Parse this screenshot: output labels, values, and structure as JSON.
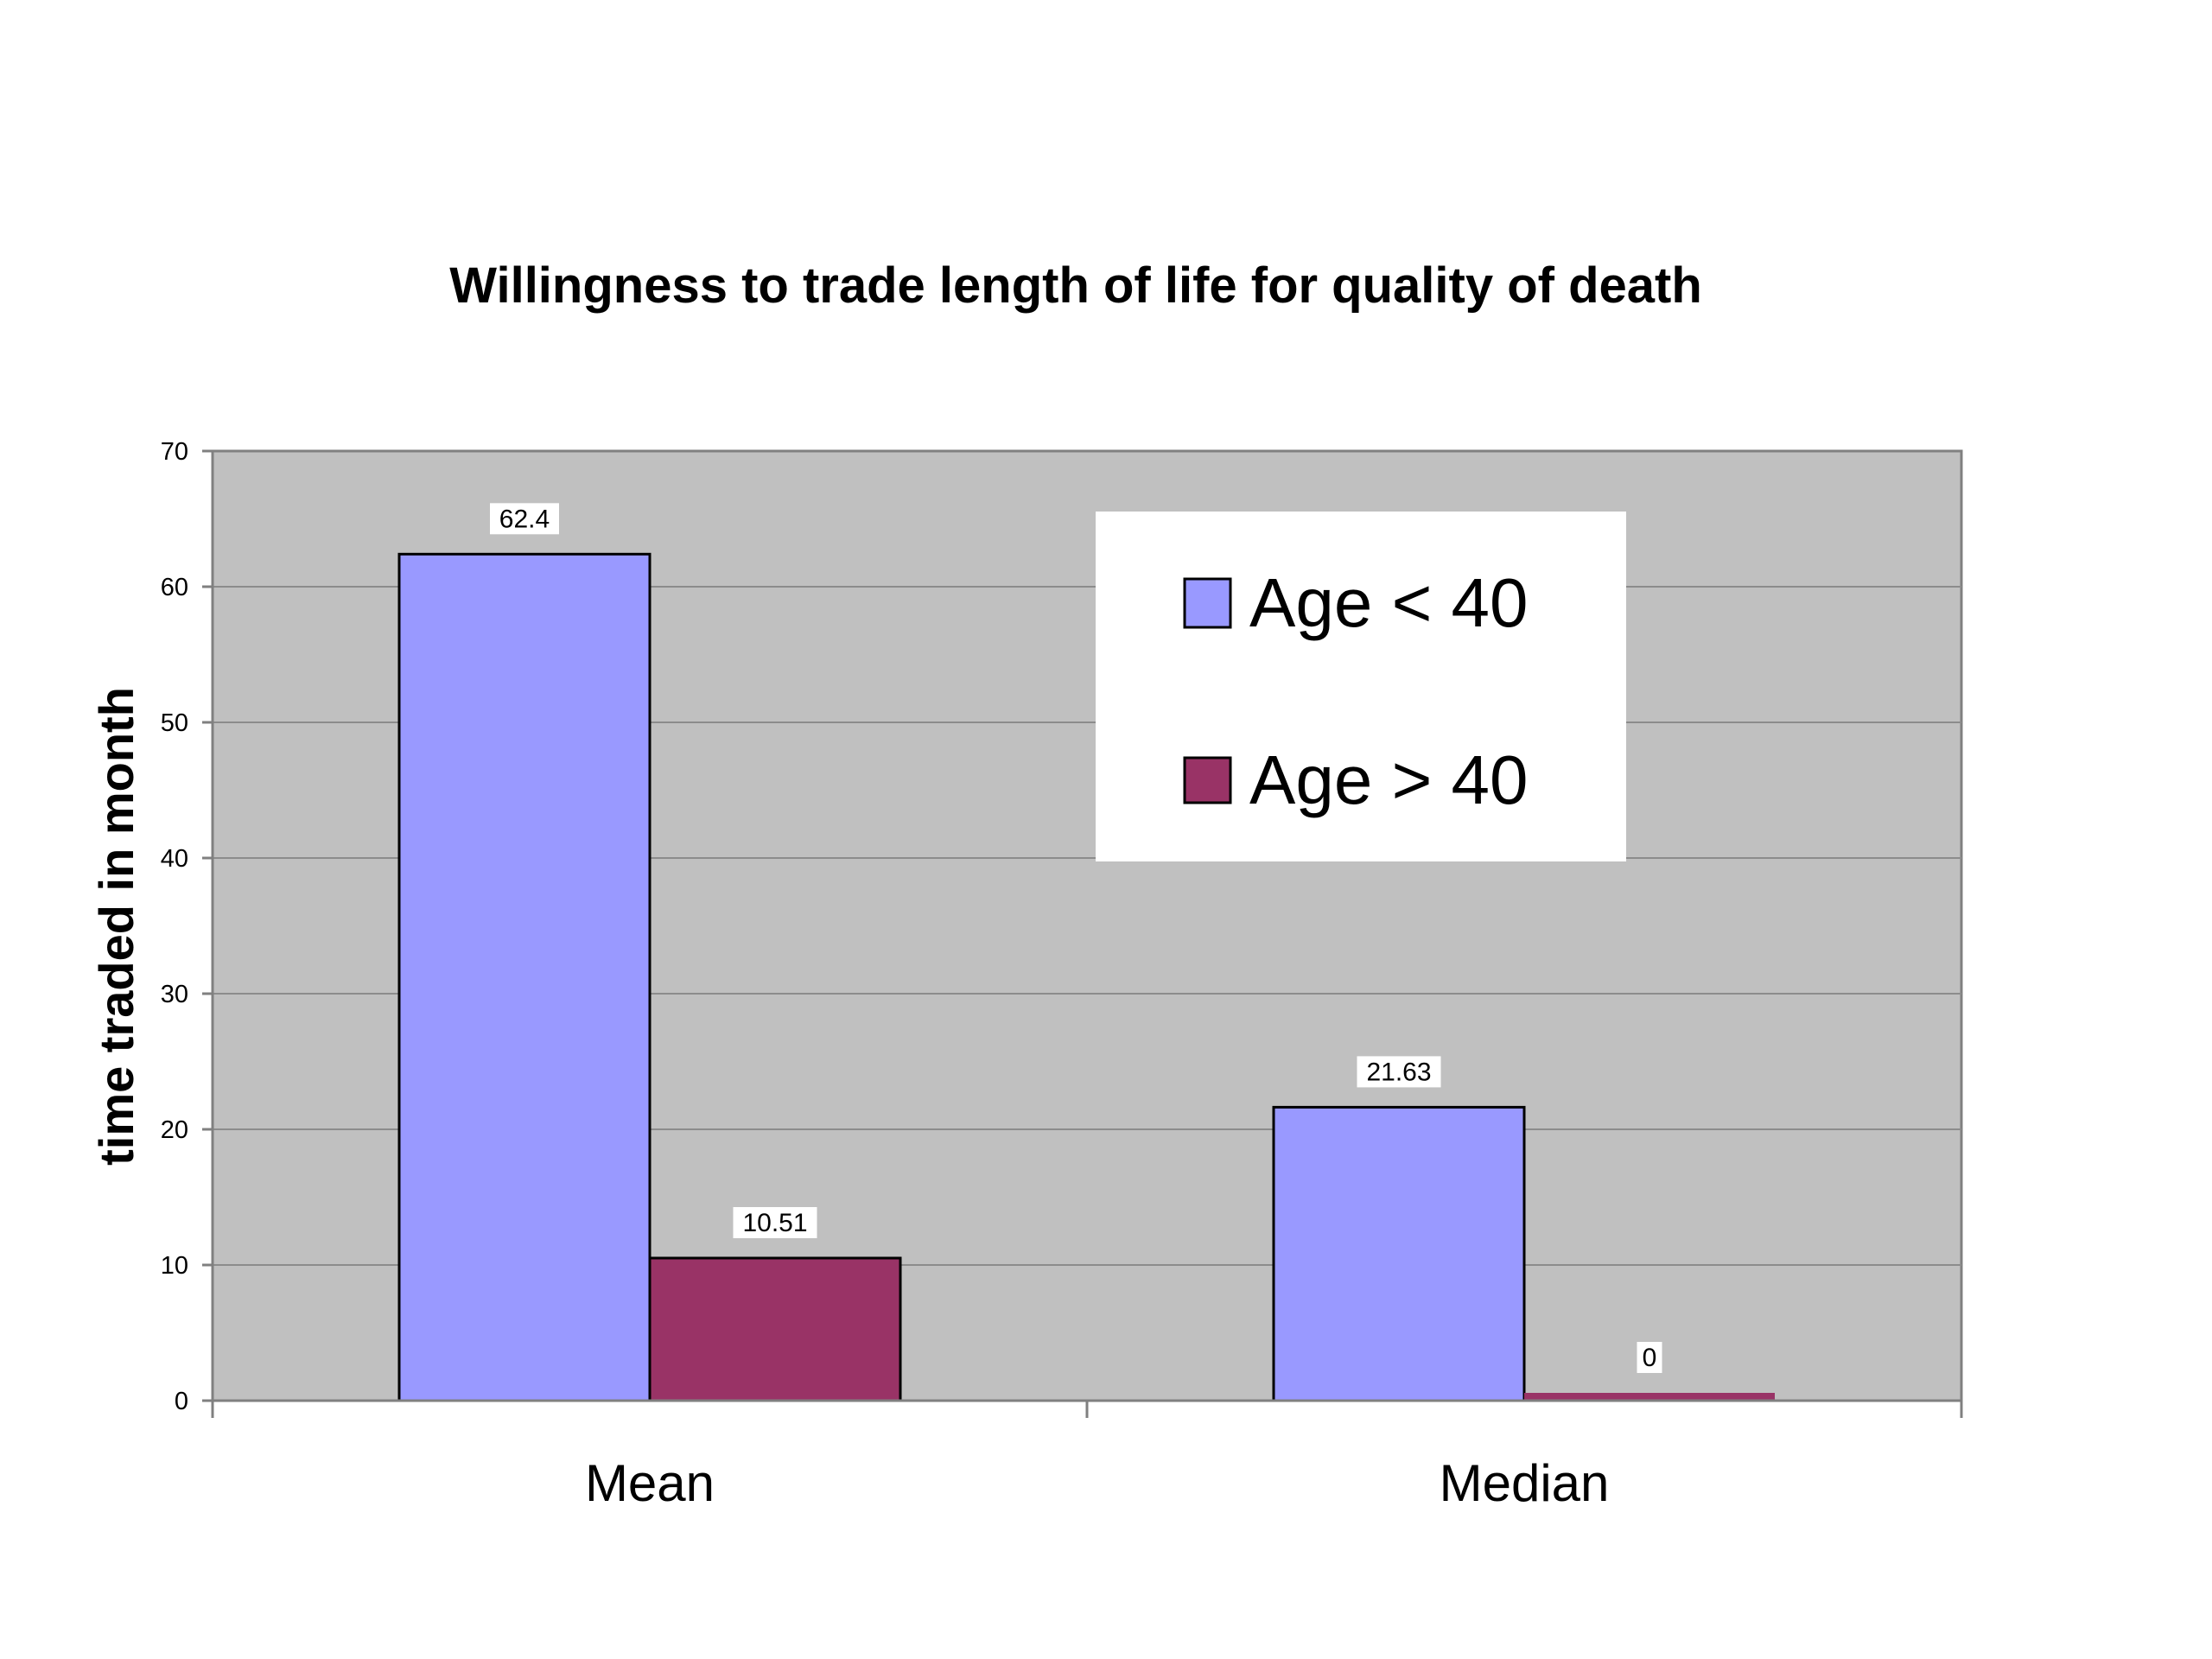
{
  "chart_data": {
    "type": "bar",
    "title": "Willingness to trade length of life for quality of death",
    "xlabel": "",
    "ylabel": "time traded in month",
    "categories": [
      "Mean",
      "Median"
    ],
    "series": [
      {
        "name": "Age < 40",
        "values": [
          62.4,
          21.63
        ],
        "color": "#9999ff",
        "labels": [
          "62.4",
          "21.63"
        ]
      },
      {
        "name": "Age > 40",
        "values": [
          10.51,
          0
        ],
        "color": "#993366",
        "labels": [
          "10.51",
          "0"
        ]
      }
    ],
    "ylim": [
      0,
      70
    ],
    "yticks": [
      0,
      10,
      20,
      30,
      40,
      50,
      60,
      70
    ],
    "grid": true,
    "legend_position": "top-right",
    "plot_background": "#c0c0c0"
  }
}
